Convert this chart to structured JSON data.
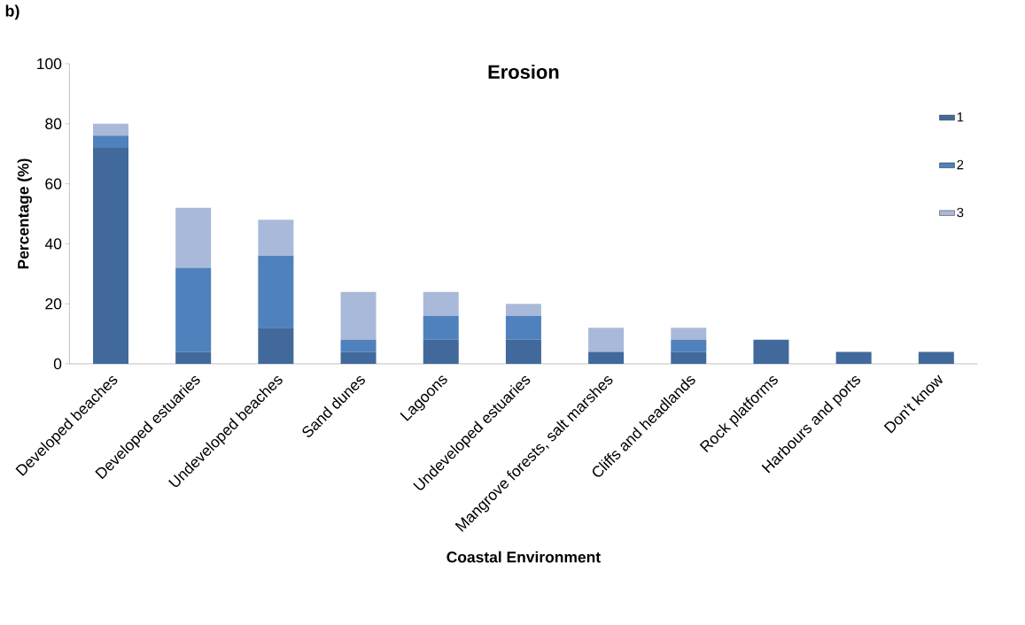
{
  "chart_data": {
    "type": "bar",
    "stacked": true,
    "title": "Erosion",
    "xlabel": "Coastal Environment",
    "ylabel": "Percentage (%)",
    "annotations": [
      "b)"
    ],
    "categories": [
      "Developed beaches",
      "Developed estuaries",
      "Undeveloped beaches",
      "Sand dunes",
      "Lagoons",
      "Undeveloped estuaries",
      "Mangrove forests, salt marshes",
      "Cliffs and headlands",
      "Rock platforms",
      "Harbours and ports",
      "Don't know"
    ],
    "series": [
      {
        "name": "1",
        "color": "#41699b",
        "values": [
          72,
          4,
          12,
          4,
          8,
          8,
          4,
          4,
          8,
          4,
          4
        ]
      },
      {
        "name": "2",
        "color": "#4f81bd",
        "values": [
          4,
          28,
          24,
          4,
          8,
          8,
          0,
          4,
          0,
          0,
          0
        ]
      },
      {
        "name": "3",
        "color": "#a9b9d9",
        "values": [
          4,
          20,
          12,
          16,
          8,
          4,
          8,
          4,
          0,
          0,
          0
        ]
      }
    ],
    "ylim": [
      0,
      100
    ],
    "yticks": [
      0,
      20,
      40,
      60,
      80,
      100
    ],
    "grid": false,
    "legend": "top right"
  }
}
